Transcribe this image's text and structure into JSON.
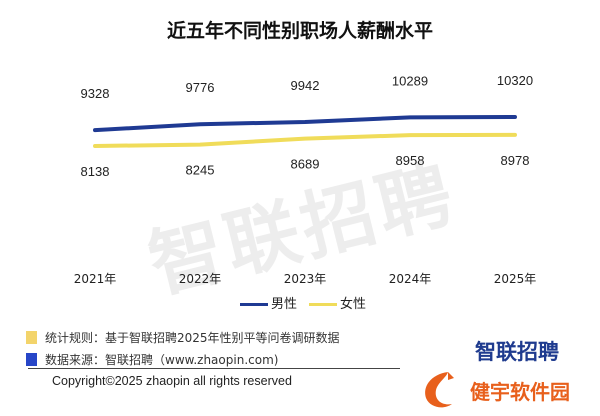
{
  "chart_data": {
    "type": "line",
    "title": "近五年不同性别职场人薪酬水平",
    "categories": [
      "2021年",
      "2022年",
      "2023年",
      "2024年",
      "2025年"
    ],
    "series": [
      {
        "name": "男性",
        "color": "#1f3a93",
        "values": [
          9328,
          9776,
          9942,
          10289,
          10320
        ],
        "label_position": "above"
      },
      {
        "name": "女性",
        "color": "#f0dc5a",
        "values": [
          8138,
          8245,
          8689,
          8958,
          8978
        ],
        "label_position": "below"
      }
    ],
    "xlabel": "",
    "ylabel": "",
    "grid": false,
    "legend": "bottom"
  },
  "notes": [
    {
      "text": "统计规则：基于智联招聘2025年性别平等问卷调研数据",
      "color": "#f3d46b"
    },
    {
      "text": "数据来源：智联招聘（www.zhaopin.com)",
      "color": "#2746c8"
    }
  ],
  "copyright": "Copyright©2025 zhaopin all rights reserved",
  "brand": "智联招聘",
  "watermark": "智联招聘",
  "site_logo": "健宇软件园"
}
